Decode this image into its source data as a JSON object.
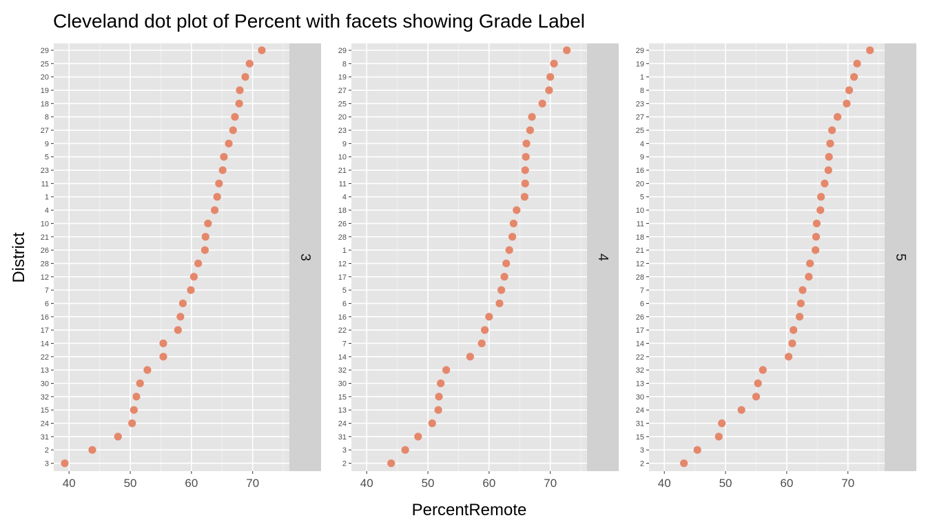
{
  "chart_data": {
    "type": "scatter",
    "title": "Cleveland dot plot of Percent with facets showing Grade Label",
    "xlabel": "PercentRemote",
    "ylabel": "District",
    "xlim": [
      37.5,
      76
    ],
    "x_ticks": [
      "40",
      "50",
      "60",
      "70"
    ],
    "grid": true,
    "point_color": "#E5876B",
    "panel_color": "#E5E5E5",
    "strip_color": "#D1D1D1",
    "facets": [
      {
        "label": "3",
        "districts": [
          "29",
          "25",
          "20",
          "19",
          "18",
          "8",
          "27",
          "9",
          "5",
          "23",
          "11",
          "1",
          "4",
          "10",
          "21",
          "26",
          "28",
          "12",
          "7",
          "6",
          "16",
          "17",
          "14",
          "22",
          "13",
          "30",
          "32",
          "15",
          "24",
          "31",
          "2",
          "3"
        ],
        "values": [
          71.5,
          69.5,
          68.8,
          67.9,
          67.8,
          67.1,
          66.8,
          66.1,
          65.3,
          65.1,
          64.5,
          64.2,
          63.8,
          62.7,
          62.3,
          62.2,
          61.1,
          60.4,
          59.9,
          58.6,
          58.2,
          57.8,
          55.4,
          55.4,
          52.8,
          51.6,
          51.0,
          50.6,
          50.3,
          48.0,
          43.8,
          39.3
        ]
      },
      {
        "label": "4",
        "districts": [
          "29",
          "8",
          "19",
          "27",
          "25",
          "20",
          "23",
          "9",
          "10",
          "21",
          "11",
          "4",
          "18",
          "26",
          "28",
          "1",
          "12",
          "17",
          "5",
          "6",
          "16",
          "22",
          "7",
          "14",
          "32",
          "30",
          "15",
          "13",
          "24",
          "31",
          "3",
          "2"
        ],
        "values": [
          72.7,
          70.6,
          70.0,
          69.8,
          68.7,
          67.0,
          66.7,
          66.1,
          66.0,
          65.9,
          65.9,
          65.8,
          64.5,
          64.0,
          63.8,
          63.3,
          62.8,
          62.5,
          62.0,
          61.7,
          60.0,
          59.3,
          58.8,
          56.9,
          53.0,
          52.1,
          51.8,
          51.7,
          50.7,
          48.4,
          46.3,
          44.0
        ]
      },
      {
        "label": "5",
        "districts": [
          "29",
          "19",
          "1",
          "8",
          "23",
          "27",
          "25",
          "4",
          "9",
          "16",
          "20",
          "5",
          "10",
          "11",
          "18",
          "21",
          "12",
          "28",
          "7",
          "6",
          "26",
          "17",
          "14",
          "22",
          "32",
          "13",
          "30",
          "24",
          "31",
          "15",
          "3",
          "2"
        ],
        "values": [
          73.6,
          71.5,
          71.0,
          70.2,
          69.8,
          68.3,
          67.4,
          67.1,
          66.9,
          66.8,
          66.2,
          65.6,
          65.5,
          64.9,
          64.8,
          64.7,
          63.8,
          63.6,
          62.6,
          62.3,
          62.1,
          61.1,
          60.9,
          60.3,
          56.1,
          55.3,
          55.0,
          52.6,
          49.4,
          48.9,
          45.4,
          43.2
        ]
      }
    ]
  }
}
